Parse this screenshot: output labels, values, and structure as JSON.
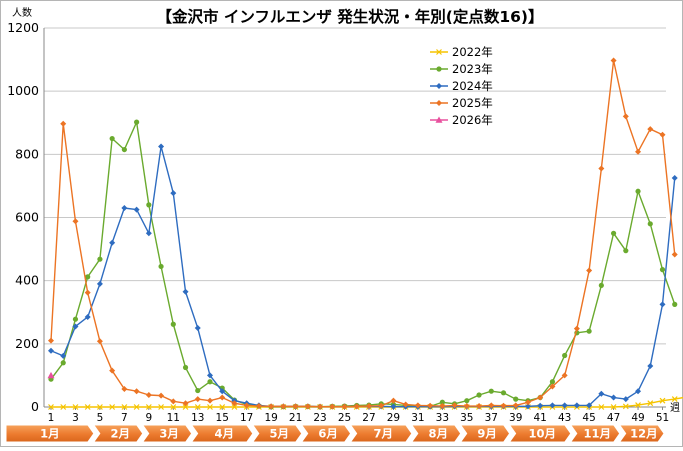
{
  "chart_data": {
    "type": "line",
    "title": "【金沢市 インフルエンザ 発生状況・年別(定点数16)】",
    "ylabel": "人数",
    "xlabel": "週",
    "ylim": [
      0,
      1200
    ],
    "yticks": [
      0,
      200,
      400,
      600,
      800,
      1000,
      1200
    ],
    "xlim": [
      1,
      53
    ],
    "xticks": [
      1,
      3,
      5,
      7,
      9,
      11,
      13,
      15,
      17,
      19,
      21,
      23,
      25,
      27,
      29,
      31,
      33,
      35,
      37,
      39,
      41,
      43,
      45,
      47,
      49,
      51
    ],
    "grid": "horizontal",
    "legend_position": "top-right",
    "months": [
      {
        "label": "1月",
        "start": 1,
        "end": 5
      },
      {
        "label": "2月",
        "start": 5,
        "end": 9
      },
      {
        "label": "3月",
        "start": 9,
        "end": 13
      },
      {
        "label": "4月",
        "start": 13,
        "end": 18
      },
      {
        "label": "5月",
        "start": 18,
        "end": 22
      },
      {
        "label": "6月",
        "start": 22,
        "end": 26
      },
      {
        "label": "7月",
        "start": 26,
        "end": 31
      },
      {
        "label": "8月",
        "start": 31,
        "end": 35
      },
      {
        "label": "9月",
        "start": 35,
        "end": 39
      },
      {
        "label": "10月",
        "start": 39,
        "end": 44
      },
      {
        "label": "11月",
        "start": 44,
        "end": 48
      },
      {
        "label": "12月",
        "start": 48,
        "end": 53
      }
    ],
    "series": [
      {
        "name": "2022年",
        "color": "#f5c400",
        "marker": "x",
        "values": [
          0,
          0,
          0,
          0,
          0,
          0,
          0,
          0,
          0,
          0,
          0,
          0,
          0,
          0,
          0,
          0,
          0,
          0,
          0,
          0,
          0,
          0,
          0,
          0,
          0,
          0,
          0,
          0,
          0,
          0,
          0,
          0,
          0,
          0,
          0,
          0,
          0,
          0,
          0,
          0,
          0,
          0,
          0,
          0,
          0,
          0,
          0,
          2,
          6,
          12,
          20,
          25,
          32
        ]
      },
      {
        "name": "2023年",
        "color": "#6aaa2e",
        "marker": "circle",
        "values": [
          88,
          140,
          278,
          412,
          468,
          850,
          815,
          902,
          640,
          445,
          262,
          125,
          52,
          80,
          60,
          22,
          8,
          3,
          1,
          1,
          2,
          2,
          1,
          2,
          3,
          5,
          6,
          10,
          8,
          5,
          3,
          2,
          15,
          10,
          20,
          38,
          50,
          45,
          25,
          20,
          30,
          80,
          163,
          235,
          240,
          385,
          550,
          495,
          683,
          580,
          435,
          325
        ]
      },
      {
        "name": "2024年",
        "color": "#2e6cc0",
        "marker": "diamond",
        "values": [
          178,
          162,
          255,
          285,
          390,
          520,
          630,
          625,
          550,
          825,
          677,
          365,
          250,
          100,
          50,
          20,
          12,
          5,
          2,
          2,
          2,
          2,
          1,
          1,
          1,
          2,
          2,
          2,
          1,
          1,
          1,
          1,
          1,
          2,
          2,
          2,
          2,
          2,
          2,
          2,
          4,
          5,
          5,
          5,
          5,
          42,
          30,
          25,
          50,
          130,
          325,
          725
        ]
      },
      {
        "name": "2025年",
        "color": "#ec7424",
        "marker": "diamond",
        "values": [
          210,
          897,
          588,
          362,
          208,
          115,
          57,
          50,
          38,
          36,
          18,
          12,
          25,
          20,
          30,
          12,
          5,
          3,
          2,
          2,
          2,
          2,
          1,
          1,
          1,
          2,
          3,
          4,
          20,
          8,
          5,
          4,
          3,
          5,
          3,
          3,
          5,
          4,
          5,
          15,
          30,
          65,
          100,
          248,
          432,
          755,
          1097,
          920,
          808,
          880,
          862,
          483
        ]
      },
      {
        "name": "2026年",
        "color": "#e8509e",
        "marker": "triangle",
        "values": [
          100
        ]
      }
    ]
  }
}
